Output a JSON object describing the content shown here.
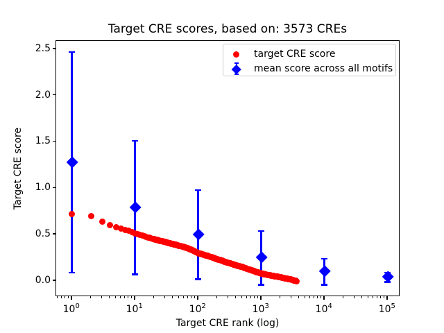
{
  "title": "Target CRE scores, based on: 3573 CREs",
  "chart_data": {
    "type": "scatter",
    "title": "Target CRE scores, based on: 3573 CREs",
    "xlabel": "Target CRE rank (log)",
    "ylabel": "Target CRE score",
    "x_scale": "log",
    "y_scale": "linear",
    "grid": false,
    "legend_position": "upper right",
    "xlim_log10": [
      -0.25,
      5.2
    ],
    "ylim": [
      -0.172,
      2.588
    ],
    "x_ticks": {
      "base": "10",
      "major": [
        {
          "value": 1,
          "exp": "0"
        },
        {
          "value": 10,
          "exp": "1"
        },
        {
          "value": 100,
          "exp": "2"
        },
        {
          "value": 1000,
          "exp": "3"
        },
        {
          "value": 10000,
          "exp": "4"
        },
        {
          "value": 100000,
          "exp": "5"
        }
      ],
      "minor_multiples": [
        2,
        3,
        4,
        5,
        6,
        7,
        8,
        9
      ]
    },
    "y_ticks": [
      {
        "value": 0.0,
        "label": "0.0"
      },
      {
        "value": 0.5,
        "label": "0.5"
      },
      {
        "value": 1.0,
        "label": "1.0"
      },
      {
        "value": 1.5,
        "label": "1.5"
      },
      {
        "value": 2.0,
        "label": "2.0"
      },
      {
        "value": 2.5,
        "label": "2.5"
      }
    ],
    "series": [
      {
        "name": "target CRE score",
        "marker": "circle",
        "color": "#ff0000",
        "n_points": 3573,
        "rank_range": [
          1,
          3573
        ],
        "anchor_points_rank_score": [
          [
            1,
            0.72
          ],
          [
            2,
            0.7
          ],
          [
            3,
            0.64
          ],
          [
            4,
            0.6
          ],
          [
            5,
            0.58
          ],
          [
            6,
            0.565
          ],
          [
            8,
            0.54
          ],
          [
            10,
            0.51
          ],
          [
            15,
            0.475
          ],
          [
            20,
            0.45
          ],
          [
            30,
            0.42
          ],
          [
            50,
            0.38
          ],
          [
            70,
            0.35
          ],
          [
            100,
            0.3
          ],
          [
            150,
            0.265
          ],
          [
            200,
            0.235
          ],
          [
            300,
            0.195
          ],
          [
            500,
            0.15
          ],
          [
            700,
            0.115
          ],
          [
            1000,
            0.08
          ],
          [
            1500,
            0.055
          ],
          [
            2000,
            0.04
          ],
          [
            2500,
            0.025
          ],
          [
            3000,
            0.015
          ],
          [
            3573,
            0.0
          ]
        ]
      },
      {
        "name": "mean score across all motifs",
        "marker": "diamond",
        "color": "#0000ff",
        "error_bars": true,
        "points": [
          {
            "x": 1,
            "mean": 1.28,
            "err": 1.19
          },
          {
            "x": 10,
            "mean": 0.79,
            "err": 0.72
          },
          {
            "x": 100,
            "mean": 0.5,
            "err": 0.48
          },
          {
            "x": 1000,
            "mean": 0.25,
            "err": 0.29
          },
          {
            "x": 10000,
            "mean": 0.1,
            "err": 0.14
          },
          {
            "x": 100000,
            "mean": 0.04,
            "err": 0.05
          }
        ]
      }
    ]
  },
  "colors": {
    "red": "#ff0000",
    "blue": "#0000ff",
    "text": "#000000",
    "spine": "#000000",
    "legend_border": "#cccccc",
    "background": "#ffffff"
  }
}
